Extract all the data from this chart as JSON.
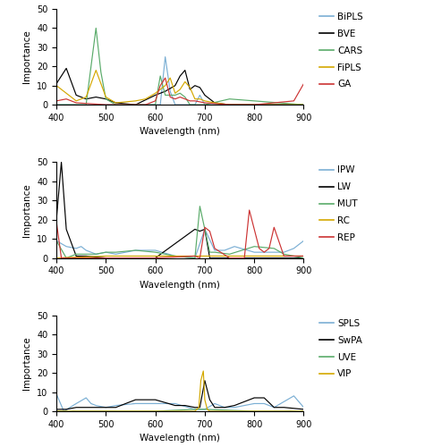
{
  "panel1": {
    "legend_labels": [
      "BiPLS",
      "BVE",
      "CARS",
      "FiPLS",
      "GA"
    ],
    "legend_colors": [
      "#7bafd4",
      "#000000",
      "#5aab6a",
      "#d4a800",
      "#cc3333"
    ],
    "series": {
      "BiPLS": {
        "x": [
          400,
          600,
          610,
          620,
          630,
          640,
          650,
          660,
          670,
          680,
          690,
          700,
          750,
          800,
          900
        ],
        "y": [
          0,
          0,
          0,
          25,
          7,
          0,
          0,
          0,
          0,
          0,
          5,
          0,
          0,
          0,
          0
        ]
      },
      "BVE": {
        "x": [
          400,
          420,
          440,
          460,
          480,
          500,
          520,
          560,
          600,
          620,
          640,
          650,
          660,
          670,
          680,
          690,
          700,
          720,
          750,
          800,
          900
        ],
        "y": [
          11,
          19,
          5,
          3,
          4,
          3,
          1,
          0,
          5,
          7,
          10,
          15,
          18,
          8,
          10,
          9,
          5,
          1,
          0,
          0,
          0
        ]
      },
      "CARS": {
        "x": [
          400,
          440,
          460,
          480,
          490,
          500,
          520,
          560,
          600,
          610,
          620,
          640,
          650,
          660,
          670,
          700,
          750,
          800,
          900
        ],
        "y": [
          0,
          0,
          0,
          40,
          17,
          3,
          0,
          0,
          0,
          15,
          5,
          5,
          6,
          4,
          0,
          0,
          3,
          2,
          0
        ]
      },
      "FiPLS": {
        "x": [
          400,
          420,
          440,
          460,
          480,
          500,
          520,
          560,
          580,
          600,
          610,
          620,
          630,
          640,
          650,
          660,
          670,
          680,
          690,
          700,
          720,
          750,
          800,
          900
        ],
        "y": [
          10,
          6,
          2,
          4,
          18,
          4,
          1,
          2,
          3,
          6,
          8,
          10,
          14,
          6,
          8,
          12,
          9,
          3,
          3,
          2,
          1,
          0,
          0,
          0
        ]
      },
      "GA": {
        "x": [
          400,
          420,
          440,
          500,
          560,
          580,
          600,
          610,
          620,
          630,
          640,
          650,
          660,
          670,
          680,
          700,
          750,
          800,
          880,
          900
        ],
        "y": [
          2,
          3,
          1,
          0,
          0,
          0,
          2,
          10,
          14,
          4,
          3,
          4,
          3,
          2,
          2,
          1,
          0,
          0,
          2,
          11
        ]
      }
    }
  },
  "panel2": {
    "legend_labels": [
      "IPW",
      "LW",
      "MUT",
      "RC",
      "REP"
    ],
    "legend_colors": [
      "#7bafd4",
      "#000000",
      "#5aab6a",
      "#d4a800",
      "#cc3333"
    ],
    "series": {
      "IPW": {
        "x": [
          400,
          420,
          440,
          450,
          460,
          470,
          480,
          500,
          520,
          560,
          600,
          640,
          680,
          700,
          720,
          740,
          760,
          800,
          820,
          840,
          860,
          880,
          900
        ],
        "y": [
          9,
          6,
          5,
          6,
          4,
          3,
          2,
          3,
          2,
          4,
          4,
          1,
          0,
          15,
          4,
          4,
          6,
          3,
          3,
          3,
          3,
          5,
          9
        ]
      },
      "LW": {
        "x": [
          400,
          410,
          420,
          440,
          460,
          500,
          560,
          600,
          680,
          690,
          700,
          710,
          750,
          800,
          900
        ],
        "y": [
          20,
          50,
          15,
          1,
          1,
          0,
          0,
          0,
          15,
          14,
          15,
          0,
          0,
          0,
          0
        ]
      },
      "MUT": {
        "x": [
          400,
          420,
          440,
          460,
          480,
          500,
          520,
          560,
          600,
          640,
          680,
          690,
          700,
          710,
          720,
          750,
          800,
          840,
          860,
          900
        ],
        "y": [
          9,
          0,
          2,
          2,
          2,
          3,
          3,
          4,
          3,
          1,
          0,
          27,
          15,
          3,
          3,
          2,
          6,
          5,
          2,
          0
        ]
      },
      "RC": {
        "x": [
          400,
          500,
          600,
          700,
          800,
          900
        ],
        "y": [
          0,
          1,
          1,
          1,
          1,
          1
        ]
      },
      "REP": {
        "x": [
          400,
          410,
          420,
          500,
          560,
          600,
          680,
          690,
          700,
          710,
          720,
          750,
          780,
          790,
          800,
          810,
          820,
          830,
          840,
          860,
          900
        ],
        "y": [
          19,
          0,
          0,
          0,
          0,
          0,
          1,
          0,
          16,
          14,
          5,
          0,
          0,
          25,
          15,
          5,
          3,
          5,
          16,
          1,
          1
        ]
      }
    }
  },
  "panel3": {
    "legend_labels": [
      "SPLS",
      "SwPA",
      "UVE",
      "VIP"
    ],
    "legend_colors": [
      "#7bafd4",
      "#000000",
      "#5aab6a",
      "#d4a800"
    ],
    "series": {
      "SPLS": {
        "x": [
          400,
          415,
          440,
          460,
          470,
          480,
          500,
          520,
          560,
          580,
          600,
          640,
          680,
          700,
          720,
          740,
          760,
          800,
          820,
          840,
          860,
          880,
          900
        ],
        "y": [
          9,
          0,
          4,
          7,
          4,
          3,
          2,
          3,
          4,
          4,
          4,
          4,
          1,
          1,
          4,
          2,
          2,
          4,
          4,
          2,
          5,
          8,
          2
        ]
      },
      "SwPA": {
        "x": [
          400,
          420,
          440,
          460,
          480,
          500,
          520,
          560,
          580,
          600,
          640,
          660,
          680,
          690,
          700,
          710,
          720,
          740,
          760,
          800,
          820,
          840,
          860,
          900
        ],
        "y": [
          1,
          1,
          2,
          2,
          2,
          2,
          2,
          6,
          6,
          6,
          3,
          3,
          2,
          2,
          16,
          6,
          2,
          2,
          3,
          7,
          7,
          2,
          2,
          1
        ]
      },
      "UVE": {
        "x": [
          400,
          500,
          600,
          680,
          700,
          800,
          900
        ],
        "y": [
          0,
          0,
          0,
          1,
          1,
          0,
          0
        ]
      },
      "VIP": {
        "x": [
          400,
          500,
          600,
          680,
          688,
          692,
          697,
          700,
          705,
          710,
          750,
          800,
          900
        ],
        "y": [
          0,
          0,
          0,
          0,
          2,
          16,
          21,
          6,
          1,
          0,
          0,
          0,
          0
        ]
      }
    }
  },
  "xlim": [
    400,
    900
  ],
  "ylim": [
    0,
    50
  ],
  "xlabel": "Wavelength (nm)",
  "ylabel": "Importance",
  "xticks": [
    400,
    500,
    600,
    700,
    800,
    900
  ],
  "yticks": [
    0,
    10,
    20,
    30,
    40,
    50
  ]
}
